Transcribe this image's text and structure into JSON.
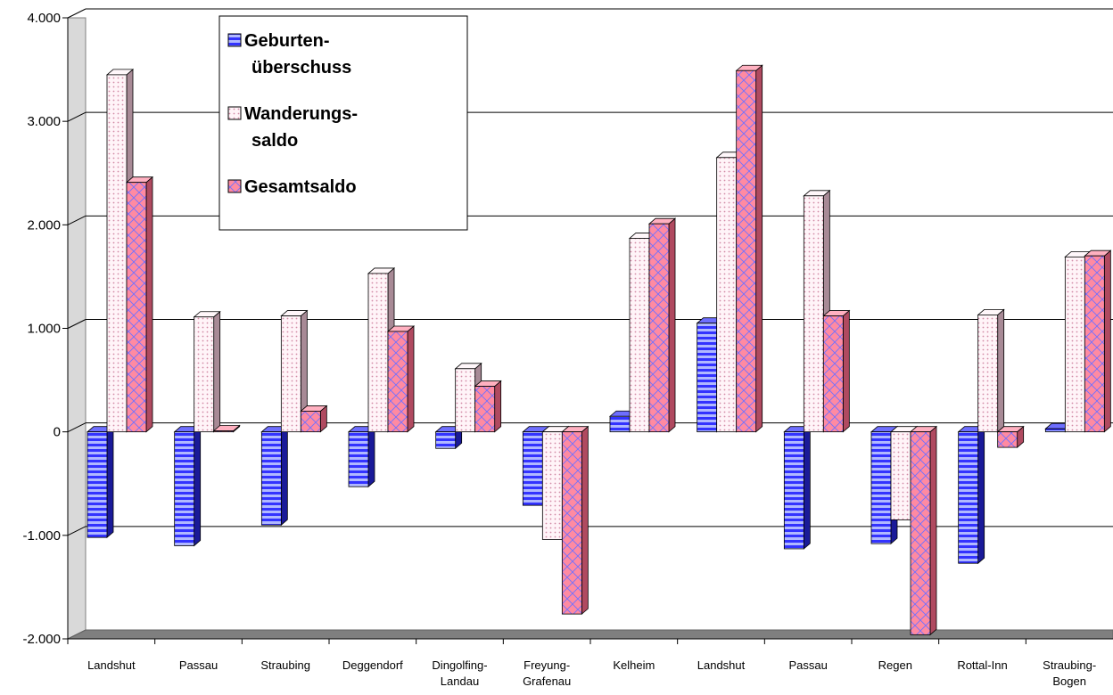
{
  "chart_data": {
    "type": "bar",
    "title": "",
    "xlabel": "",
    "ylabel": "",
    "ylim": [
      -2000,
      4000
    ],
    "yticks": [
      4000,
      3000,
      2000,
      1000,
      0,
      -1000,
      -2000
    ],
    "ytick_labels": [
      "4.000",
      "3.000",
      "2.000",
      "1.000",
      "0",
      "-1.000",
      "-2.000"
    ],
    "grid": true,
    "legend_position": "top-left",
    "categories": [
      [
        "Landshut"
      ],
      [
        "Passau"
      ],
      [
        "Straubing"
      ],
      [
        "Deggendorf"
      ],
      [
        "Dingolfing-",
        "Landau"
      ],
      [
        "Freyung-",
        "Grafenau"
      ],
      [
        "Kelheim"
      ],
      [
        "Landshut"
      ],
      [
        "Passau"
      ],
      [
        "Regen"
      ],
      [
        "Rottal-Inn"
      ],
      [
        "Straubing-",
        "Bogen"
      ]
    ],
    "series": [
      {
        "name": [
          "Geburten-",
          "überschuss"
        ],
        "color": "#3333ff",
        "pattern": "horizontal-stripes",
        "values": [
          -1020,
          -1100,
          -900,
          -530,
          -160,
          -710,
          150,
          1050,
          -1130,
          -1080,
          -1270,
          30
        ]
      },
      {
        "name": [
          "Wanderungs-",
          "saldo"
        ],
        "color": "#ffe8f0",
        "pattern": "dots",
        "values": [
          3450,
          1110,
          1120,
          1530,
          610,
          -1040,
          1870,
          2650,
          2280,
          -850,
          1130,
          1690
        ]
      },
      {
        "name": [
          "Gesamtsaldo"
        ],
        "color": "#ff7f99",
        "pattern": "crosshatch",
        "values": [
          2410,
          10,
          200,
          970,
          440,
          -1760,
          2010,
          3490,
          1120,
          -1960,
          -150,
          1700
        ]
      }
    ]
  }
}
